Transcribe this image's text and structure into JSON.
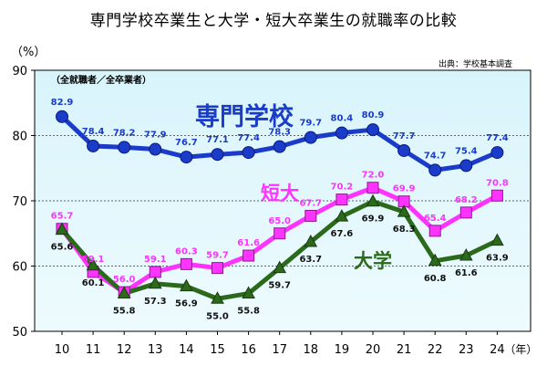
{
  "chart_data": {
    "type": "line",
    "title": "専門学校卒業生と大学・短大卒業生の就職率の比較",
    "y_unit_label": "（%）",
    "y_subtitle": "（全就職者／全卒業者）",
    "source_note": "出典：学校基本調査",
    "x_unit_label": "（年）",
    "x": [
      10,
      11,
      12,
      13,
      14,
      15,
      16,
      17,
      18,
      19,
      20,
      21,
      22,
      23,
      24
    ],
    "ylim": [
      50,
      90
    ],
    "yticks": [
      50,
      60,
      70,
      80,
      90
    ],
    "grid": true,
    "series": [
      {
        "name": "専門学校",
        "color": "#1a3cc8",
        "marker": "circle",
        "values": [
          82.9,
          78.4,
          78.2,
          77.9,
          76.7,
          77.1,
          77.4,
          78.3,
          79.7,
          80.4,
          80.9,
          77.7,
          74.7,
          75.4,
          77.4
        ]
      },
      {
        "name": "短大",
        "color": "#ff33ff",
        "marker": "square",
        "values": [
          65.7,
          59.1,
          56.0,
          59.1,
          60.3,
          59.7,
          61.6,
          65.0,
          67.7,
          70.2,
          72.0,
          69.9,
          65.4,
          68.2,
          70.8
        ]
      },
      {
        "name": "大学",
        "color": "#2b6a1a",
        "marker": "triangle",
        "values": [
          65.6,
          60.1,
          55.8,
          57.3,
          56.9,
          55.0,
          55.8,
          59.7,
          63.7,
          67.6,
          69.9,
          68.3,
          60.8,
          61.6,
          63.9
        ]
      }
    ]
  }
}
